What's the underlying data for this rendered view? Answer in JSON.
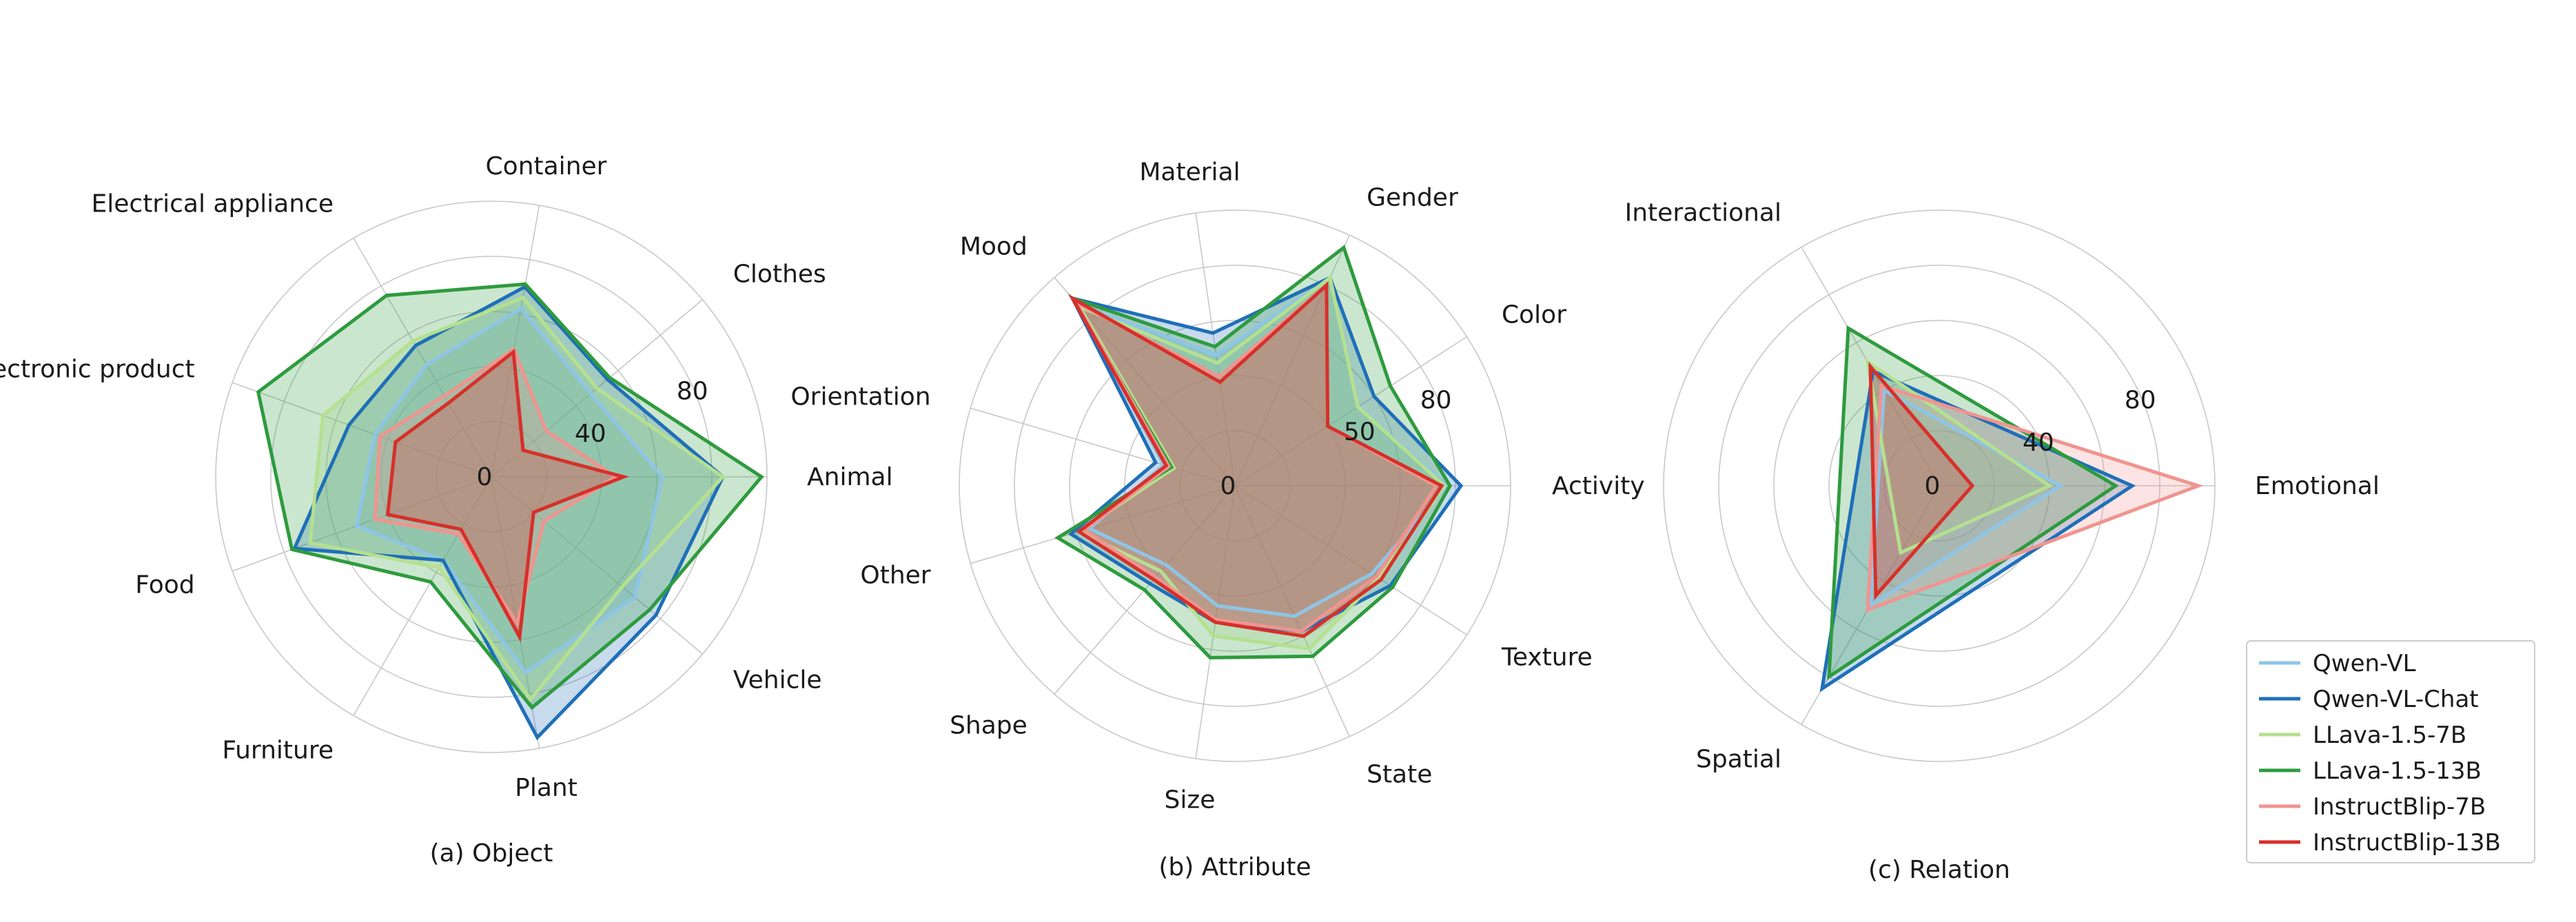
{
  "colors": {
    "Qwen-VL": "#8ec5e6",
    "Qwen-VL-Chat": "#1f6fb8",
    "LLava-1.5-7B": "#b5e08f",
    "LLava-1.5-13B": "#2e9b3e",
    "InstructBlip-7B": "#f0948f",
    "InstructBlip-13B": "#d7302a"
  },
  "legend": [
    "Qwen-VL",
    "Qwen-VL-Chat",
    "LLava-1.5-7B",
    "LLava-1.5-13B",
    "InstructBlip-7B",
    "InstructBlip-13B"
  ],
  "chart_data": [
    {
      "type": "radar",
      "caption": "(a) Object",
      "rmax": 100,
      "rticks": [
        0,
        40,
        80
      ],
      "categories": [
        "Animal",
        "Clothes",
        "Container",
        "Electrical appliance",
        "Electronic product",
        "Food",
        "Furniture",
        "Plant",
        "Vehicle"
      ],
      "series": [
        {
          "name": "Qwen-VL",
          "values": [
            62,
            47,
            62,
            47,
            45,
            52,
            35,
            72,
            68
          ]
        },
        {
          "name": "Qwen-VL-Chat",
          "values": [
            84,
            55,
            70,
            55,
            55,
            76,
            35,
            96,
            78
          ]
        },
        {
          "name": "LLava-1.5-7B",
          "values": [
            84,
            50,
            66,
            57,
            65,
            70,
            38,
            82,
            62
          ]
        },
        {
          "name": "LLava-1.5-13B",
          "values": [
            98,
            56,
            71,
            76,
            90,
            77,
            44,
            85,
            75
          ]
        },
        {
          "name": "InstructBlip-7B",
          "values": [
            45,
            26,
            47,
            34,
            43,
            45,
            24,
            54,
            25
          ]
        },
        {
          "name": "InstructBlip-13B",
          "values": [
            48,
            15,
            46,
            31,
            37,
            40,
            22,
            59,
            20
          ]
        }
      ]
    },
    {
      "type": "radar",
      "caption": "(b) Attribute",
      "rmax": 100,
      "rticks": [
        0,
        50,
        80
      ],
      "categories": [
        "Activity",
        "Color",
        "Gender",
        "Material",
        "Mood",
        "Orientation",
        "Other",
        "Shape",
        "Size",
        "State",
        "Texture"
      ],
      "series": [
        {
          "name": "Qwen-VL",
          "values": [
            77,
            53,
            83,
            48,
            87,
            27,
            55,
            38,
            44,
            52,
            59
          ]
        },
        {
          "name": "Qwen-VL-Chat",
          "values": [
            82,
            60,
            83,
            56,
            90,
            30,
            62,
            47,
            50,
            58,
            67
          ]
        },
        {
          "name": "LLava-1.5-7B",
          "values": [
            76,
            53,
            83,
            45,
            86,
            23,
            59,
            41,
            55,
            65,
            62
          ]
        },
        {
          "name": "LLava-1.5-13B",
          "values": [
            78,
            67,
            95,
            51,
            90,
            24,
            67,
            50,
            63,
            68,
            68
          ]
        },
        {
          "name": "InstructBlip-7B",
          "values": [
            73,
            40,
            80,
            40,
            88,
            25,
            57,
            44,
            49,
            58,
            61
          ]
        },
        {
          "name": "InstructBlip-13B",
          "values": [
            75,
            40,
            80,
            38,
            90,
            26,
            59,
            45,
            50,
            60,
            63
          ]
        }
      ]
    },
    {
      "type": "radar",
      "caption": "(c) Relation",
      "rmax": 100,
      "rticks": [
        0,
        40,
        80
      ],
      "categories": [
        "Emotional",
        "Interactional",
        "Spatial"
      ],
      "series": [
        {
          "name": "Qwen-VL",
          "values": [
            44,
            40,
            50
          ]
        },
        {
          "name": "Qwen-VL-Chat",
          "values": [
            70,
            48,
            85
          ]
        },
        {
          "name": "LLava-1.5-7B",
          "values": [
            40,
            52,
            28
          ]
        },
        {
          "name": "LLava-1.5-13B",
          "values": [
            64,
            66,
            80
          ]
        },
        {
          "name": "InstructBlip-7B",
          "values": [
            94,
            42,
            52
          ]
        },
        {
          "name": "InstructBlip-13B",
          "values": [
            12,
            50,
            46
          ]
        }
      ]
    }
  ]
}
